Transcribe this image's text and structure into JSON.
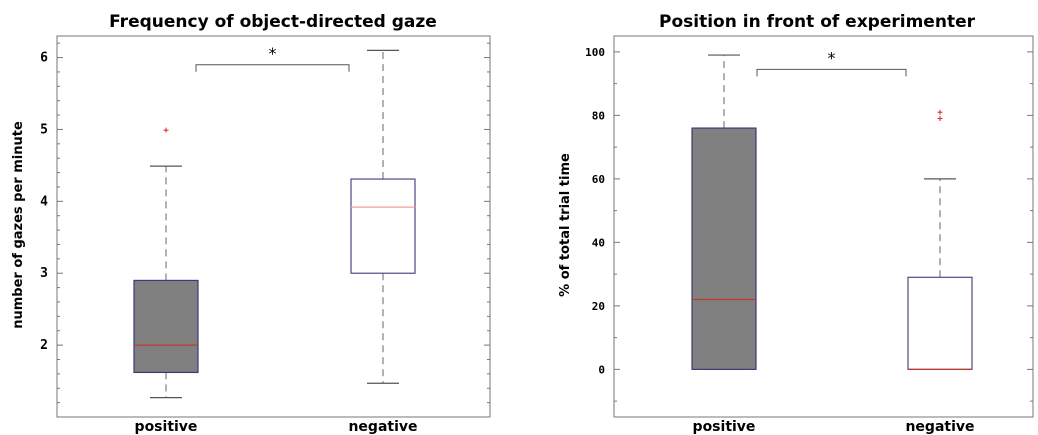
{
  "chart_data": [
    {
      "type": "box",
      "title": "Frequency of object-directed gaze",
      "xlabel": "",
      "ylabel": "number of gazes per minute",
      "ylim": [
        1.0,
        6.3
      ],
      "yticks": [
        2,
        3,
        4,
        5,
        6
      ],
      "categories": [
        "positive",
        "negative"
      ],
      "boxes": [
        {
          "category": "positive",
          "whisker_low": 1.27,
          "q1": 1.62,
          "median": 2.0,
          "q3": 2.9,
          "whisker_high": 4.49,
          "outliers": [
            4.99
          ],
          "fill": "#808080",
          "edge": "#3a3a7a",
          "median_color": "#c0392b"
        },
        {
          "category": "negative",
          "whisker_low": 1.47,
          "q1": 3.0,
          "median": 3.92,
          "q3": 4.31,
          "whisker_high": 6.1,
          "outliers": [],
          "fill": "#ffffff",
          "edge": "#4a4a8a",
          "median_color": "#f0a090"
        }
      ],
      "significance": {
        "label": "*",
        "y": 5.9
      },
      "grid": false
    },
    {
      "type": "box",
      "title": "Position in front of experimenter",
      "xlabel": "",
      "ylabel": "% of total trial time",
      "ylim": [
        -15,
        105
      ],
      "yticks": [
        0,
        20,
        40,
        60,
        80,
        100
      ],
      "categories": [
        "positive",
        "negative"
      ],
      "boxes": [
        {
          "category": "positive",
          "whisker_low": 0,
          "q1": 0,
          "median": 22,
          "q3": 76,
          "whisker_high": 99,
          "outliers": [],
          "fill": "#808080",
          "edge": "#3a3a7a",
          "median_color": "#c0392b"
        },
        {
          "category": "negative",
          "whisker_low": 0,
          "q1": 0,
          "median": 0,
          "q3": 29,
          "whisker_high": 60,
          "outliers": [
            79,
            81
          ],
          "fill": "#ffffff",
          "edge": "#4a4a8a",
          "median_color": "#c0392b"
        }
      ],
      "significance": {
        "label": "*",
        "y": 94.5
      },
      "grid": false
    }
  ]
}
